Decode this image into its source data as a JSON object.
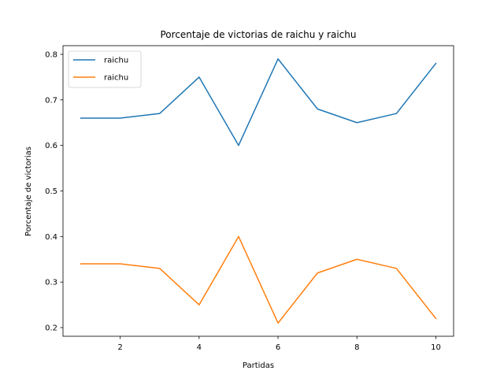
{
  "chart_data": {
    "type": "line",
    "title": "Porcentaje de victorias de raichu y raichu",
    "xlabel": "Partidas",
    "ylabel": "Porcentaje de victorias",
    "x": [
      1,
      2,
      3,
      4,
      5,
      6,
      7,
      8,
      9,
      10
    ],
    "xticks": [
      2,
      4,
      6,
      8,
      10
    ],
    "yticks": [
      0.2,
      0.3,
      0.4,
      0.5,
      0.6,
      0.7,
      0.8
    ],
    "xlim": [
      0.55,
      10.45
    ],
    "ylim": [
      0.181,
      0.819
    ],
    "grid": false,
    "legend": "top-left",
    "series": [
      {
        "name": "raichu",
        "color": "#1f77b4",
        "values": [
          0.66,
          0.66,
          0.67,
          0.75,
          0.6,
          0.79,
          0.68,
          0.65,
          0.67,
          0.78
        ]
      },
      {
        "name": "raichu",
        "color": "#ff7f0e",
        "values": [
          0.34,
          0.34,
          0.33,
          0.25,
          0.4,
          0.21,
          0.32,
          0.35,
          0.33,
          0.22
        ]
      }
    ]
  }
}
